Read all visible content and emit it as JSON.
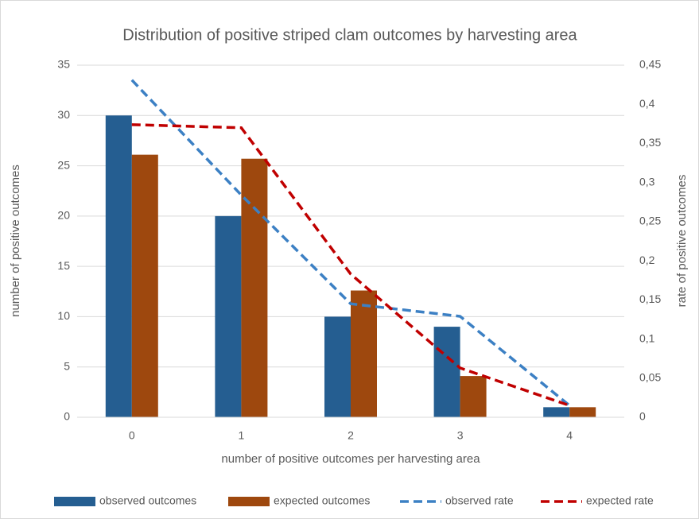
{
  "chart_data": {
    "type": "bar",
    "title": "Distribution of positive striped clam outcomes by harvesting area",
    "xlabel": "number of positive outcomes per harvesting area",
    "ylabel": "number of positive outcomes",
    "y2label": "rate of positive outcomes",
    "categories": [
      "0",
      "1",
      "2",
      "3",
      "4"
    ],
    "series": [
      {
        "name": "observed outcomes",
        "type": "bar",
        "color": "#255e91",
        "values": [
          30,
          20,
          10,
          9,
          1
        ]
      },
      {
        "name": "expected outcomes",
        "type": "bar",
        "color": "#9e480e",
        "values": [
          26.1,
          25.7,
          12.6,
          4.1,
          1.0
        ]
      },
      {
        "name": "observed rate",
        "type": "line",
        "axis": "y2",
        "color": "#3c80c4",
        "values": [
          0.431,
          0.284,
          0.145,
          0.129,
          0.015
        ]
      },
      {
        "name": "expected rate",
        "type": "line",
        "axis": "y2",
        "color": "#c00000",
        "values": [
          0.374,
          0.37,
          0.183,
          0.063,
          0.015
        ]
      }
    ],
    "ylim": [
      0,
      35
    ],
    "yticks": [
      0,
      5,
      10,
      15,
      20,
      25,
      30,
      35
    ],
    "y2lim": [
      0,
      0.45
    ],
    "y2ticks": [
      0,
      {
        "value": 0.05,
        "label": "0,05"
      },
      {
        "value": 0.1,
        "label": "0,1"
      },
      {
        "value": 0.15,
        "label": "0,15"
      },
      {
        "value": 0.2,
        "label": "0,2"
      },
      {
        "value": 0.25,
        "label": "0,25"
      },
      {
        "value": 0.3,
        "label": "0,3"
      },
      {
        "value": 0.35,
        "label": "0,35"
      },
      {
        "value": 0.4,
        "label": "0,4"
      },
      {
        "value": 0.45,
        "label": "0,45"
      }
    ],
    "grid": true,
    "legend": "bottom"
  }
}
